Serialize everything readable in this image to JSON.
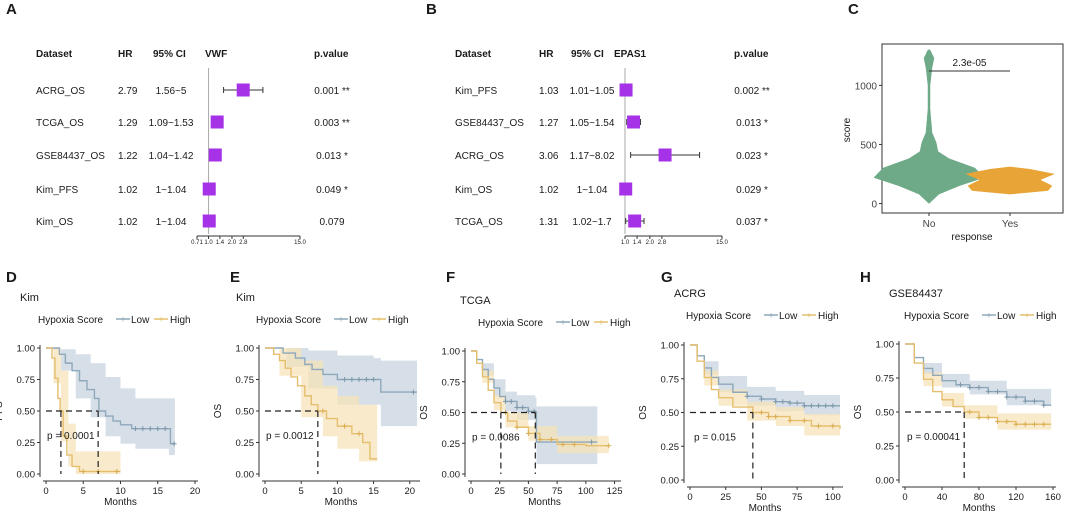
{
  "colors": {
    "marker": "#a532e6",
    "low": "#8fa8ba",
    "high": "#e5bf6e",
    "low_band": "#c8d4e0",
    "high_band": "#f5e3b8",
    "violin_no": "#6eaa88",
    "violin_yes": "#e8a437",
    "text": "#1a1a1a"
  },
  "chart_data": [
    {
      "panel": "A",
      "type": "forest",
      "gene": "VWF",
      "headers": {
        "dataset": "Dataset",
        "hr": "HR",
        "ci": "95% CI",
        "p": "p.value"
      },
      "rows": [
        {
          "dataset": "ACRG_OS",
          "hr_text": "2.79",
          "ci_text": "1.56~5",
          "p_text": "0.001 **",
          "hr": 2.79,
          "lo": 1.56,
          "hi": 5.0
        },
        {
          "dataset": "TCGA_OS",
          "hr_text": "1.29",
          "ci_text": "1.09~1.53",
          "p_text": "0.003 **",
          "hr": 1.29,
          "lo": 1.09,
          "hi": 1.53
        },
        {
          "dataset": "GSE84437_OS",
          "hr_text": "1.22",
          "ci_text": "1.04~1.42",
          "p_text": "0.013 *",
          "hr": 1.22,
          "lo": 1.04,
          "hi": 1.42
        },
        {
          "dataset": "Kim_PFS",
          "hr_text": "1.02",
          "ci_text": "1~1.04",
          "p_text": "0.049 *",
          "hr": 1.02,
          "lo": 1.0,
          "hi": 1.04
        },
        {
          "dataset": "Kim_OS",
          "hr_text": "1.02",
          "ci_text": "1~1.04",
          "p_text": "0.079",
          "hr": 1.02,
          "lo": 1.0,
          "hi": 1.04
        }
      ],
      "axis_ticks": [
        "0.71",
        "1.0",
        "1.4",
        "2.0",
        "2.8",
        "15.0"
      ],
      "tick_values": [
        0.71,
        1.0,
        1.4,
        2.0,
        2.8,
        15.0
      ],
      "ref_value": 1.0
    },
    {
      "panel": "B",
      "type": "forest",
      "gene": "EPAS1",
      "headers": {
        "dataset": "Dataset",
        "hr": "HR",
        "ci": "95% CI",
        "p": "p.value"
      },
      "rows": [
        {
          "dataset": "Kim_PFS",
          "hr_text": "1.03",
          "ci_text": "1.01~1.05",
          "p_text": "0.002 **",
          "hr": 1.03,
          "lo": 1.01,
          "hi": 1.05
        },
        {
          "dataset": "GSE84437_OS",
          "hr_text": "1.27",
          "ci_text": "1.05~1.54",
          "p_text": "0.013 *",
          "hr": 1.27,
          "lo": 1.05,
          "hi": 1.54
        },
        {
          "dataset": "ACRG_OS",
          "hr_text": "3.06",
          "ci_text": "1.17~8.02",
          "p_text": "0.023 *",
          "hr": 3.06,
          "lo": 1.17,
          "hi": 8.02
        },
        {
          "dataset": "Kim_OS",
          "hr_text": "1.02",
          "ci_text": "1~1.04",
          "p_text": "0.029 *",
          "hr": 1.02,
          "lo": 1.0,
          "hi": 1.04
        },
        {
          "dataset": "TCGA_OS",
          "hr_text": "1.31",
          "ci_text": "1.02~1.7",
          "p_text": "0.037 *",
          "hr": 1.31,
          "lo": 1.02,
          "hi": 1.7
        }
      ],
      "axis_ticks": [
        "1.0",
        "1.4",
        "2.0",
        "2.8",
        "15.0"
      ],
      "tick_values": [
        1.0,
        1.4,
        2.0,
        2.8,
        15.0
      ],
      "ref_value": 1.0
    },
    {
      "panel": "C",
      "type": "violin",
      "categories": [
        "No",
        "Yes"
      ],
      "xlabel": "response",
      "ylabel": "score",
      "yticks": [
        0,
        500,
        1000
      ],
      "ylim": [
        -80,
        1350
      ],
      "pvalue": "2.3e-05",
      "no_profile": [
        [
          0,
          0
        ],
        [
          80,
          10
        ],
        [
          150,
          30
        ],
        [
          220,
          55
        ],
        [
          300,
          46
        ],
        [
          380,
          20
        ],
        [
          440,
          9
        ],
        [
          520,
          7
        ],
        [
          600,
          3
        ],
        [
          800,
          1
        ],
        [
          1000,
          1
        ],
        [
          1150,
          3
        ],
        [
          1230,
          5
        ],
        [
          1300,
          1
        ]
      ],
      "yes_profile": [
        [
          80,
          0
        ],
        [
          110,
          38
        ],
        [
          150,
          42
        ],
        [
          200,
          30
        ],
        [
          250,
          44
        ],
        [
          290,
          20
        ],
        [
          310,
          0
        ]
      ]
    },
    {
      "panel": "D",
      "type": "km",
      "title": "Kim",
      "ylabel": "PFS",
      "xlabel": "Months",
      "legend_title": "Hypoxia Score",
      "legend_low": "Low",
      "legend_high": "High",
      "xlim": [
        0,
        20
      ],
      "xticks": [
        0,
        5,
        10,
        15,
        20
      ],
      "yticks": [
        "1.00",
        "0.75",
        "0.50",
        "0.25",
        "0.00"
      ],
      "pvalue": "p = 0.0001",
      "median_low": 7,
      "median_high": 2,
      "low_curve": [
        [
          0,
          1.0
        ],
        [
          1.8,
          0.95
        ],
        [
          2.6,
          0.88
        ],
        [
          3.5,
          0.82
        ],
        [
          4.5,
          0.74
        ],
        [
          5.5,
          0.67
        ],
        [
          6.5,
          0.6
        ],
        [
          7.1,
          0.5
        ],
        [
          8,
          0.46
        ],
        [
          9,
          0.42
        ],
        [
          10,
          0.39
        ],
        [
          11.5,
          0.36
        ],
        [
          16.5,
          0.36
        ],
        [
          16.7,
          0.24
        ],
        [
          17.3,
          0.24
        ]
      ],
      "high_curve": [
        [
          0,
          1.0
        ],
        [
          0.8,
          0.92
        ],
        [
          1.2,
          0.76
        ],
        [
          1.6,
          0.6
        ],
        [
          1.9,
          0.5
        ],
        [
          2.3,
          0.3
        ],
        [
          2.8,
          0.15
        ],
        [
          3.5,
          0.06
        ],
        [
          4.5,
          0.02
        ],
        [
          10,
          0.02
        ]
      ],
      "low_band": [
        [
          0,
          1.0,
          1.0
        ],
        [
          2,
          0.99,
          0.82
        ],
        [
          4,
          0.95,
          0.6
        ],
        [
          6,
          0.88,
          0.45
        ],
        [
          8,
          0.77,
          0.3
        ],
        [
          10,
          0.68,
          0.24
        ],
        [
          12,
          0.6,
          0.2
        ],
        [
          16.5,
          0.6,
          0.15
        ],
        [
          17.3,
          0.56,
          0.08
        ]
      ],
      "high_band": [
        [
          0,
          1.0,
          1.0
        ],
        [
          1,
          1.0,
          0.72
        ],
        [
          2,
          0.82,
          0.26
        ],
        [
          3,
          0.4,
          0.06
        ],
        [
          4,
          0.18,
          0.0
        ],
        [
          10,
          0.1,
          0.0
        ]
      ],
      "censor_low": [
        12,
        13,
        14,
        15,
        16,
        17.2
      ],
      "censor_high": [
        5,
        7,
        9.5
      ]
    },
    {
      "panel": "E",
      "type": "km",
      "title": "Kim",
      "ylabel": "OS",
      "xlabel": "Months",
      "legend_title": "Hypoxia Score",
      "legend_low": "Low",
      "legend_high": "High",
      "xlim": [
        0,
        21
      ],
      "xticks": [
        0,
        5,
        10,
        15,
        20
      ],
      "yticks": [
        "1.00",
        "0.75",
        "0.50",
        "0.25",
        "0.00"
      ],
      "pvalue": "p = 0.0012",
      "median_low": null,
      "median_high": 7.3,
      "low_curve": [
        [
          0,
          1.0
        ],
        [
          2.5,
          0.96
        ],
        [
          4.2,
          0.92
        ],
        [
          5.5,
          0.87
        ],
        [
          6.5,
          0.83
        ],
        [
          8,
          0.79
        ],
        [
          10,
          0.75
        ],
        [
          15,
          0.75
        ],
        [
          16,
          0.65
        ],
        [
          21,
          0.65
        ]
      ],
      "high_curve": [
        [
          0,
          1.0
        ],
        [
          1.2,
          0.95
        ],
        [
          2,
          0.9
        ],
        [
          2.8,
          0.84
        ],
        [
          3.6,
          0.77
        ],
        [
          4.5,
          0.7
        ],
        [
          5.5,
          0.62
        ],
        [
          6.4,
          0.55
        ],
        [
          7.3,
          0.5
        ],
        [
          8.5,
          0.44
        ],
        [
          10,
          0.38
        ],
        [
          12,
          0.32
        ],
        [
          13.5,
          0.25
        ],
        [
          14.5,
          0.12
        ],
        [
          15.5,
          0.12
        ]
      ],
      "low_band": [
        [
          0,
          1.0,
          1.0
        ],
        [
          3,
          1.0,
          0.85
        ],
        [
          6,
          0.98,
          0.68
        ],
        [
          10,
          0.94,
          0.55
        ],
        [
          15,
          0.92,
          0.55
        ],
        [
          16,
          0.9,
          0.38
        ],
        [
          21,
          0.9,
          0.38
        ]
      ],
      "high_band": [
        [
          0,
          1.0,
          1.0
        ],
        [
          2,
          1.0,
          0.78
        ],
        [
          5,
          0.9,
          0.45
        ],
        [
          8,
          0.7,
          0.3
        ],
        [
          10,
          0.62,
          0.2
        ],
        [
          13,
          0.55,
          0.1
        ],
        [
          15.5,
          0.5,
          0.0
        ]
      ],
      "censor_low": [
        11,
        12,
        13,
        14,
        15,
        20.5
      ],
      "censor_high": [
        8,
        11,
        13
      ]
    },
    {
      "panel": "F",
      "type": "km",
      "title": "TCGA",
      "ylabel": "OS",
      "xlabel": "Months",
      "legend_title": "Hypoxia Score",
      "legend_low": "Low",
      "legend_high": "High",
      "xlim": [
        0,
        128
      ],
      "xticks": [
        0,
        25,
        50,
        75,
        100,
        125
      ],
      "yticks": [
        "1.00",
        "0.75",
        "0.50",
        "0.25",
        "0.00"
      ],
      "pvalue": "p = 0.0086",
      "median_low": 56,
      "median_high": 26,
      "low_curve": [
        [
          0,
          1.0
        ],
        [
          5,
          0.93
        ],
        [
          10,
          0.85
        ],
        [
          15,
          0.77
        ],
        [
          20,
          0.7
        ],
        [
          25,
          0.63
        ],
        [
          30,
          0.59
        ],
        [
          40,
          0.54
        ],
        [
          50,
          0.51
        ],
        [
          56,
          0.5
        ],
        [
          57,
          0.26
        ],
        [
          110,
          0.26
        ]
      ],
      "high_curve": [
        [
          0,
          1.0
        ],
        [
          5,
          0.9
        ],
        [
          10,
          0.79
        ],
        [
          15,
          0.68
        ],
        [
          20,
          0.58
        ],
        [
          26,
          0.5
        ],
        [
          32,
          0.43
        ],
        [
          40,
          0.38
        ],
        [
          50,
          0.33
        ],
        [
          60,
          0.28
        ],
        [
          75,
          0.24
        ],
        [
          100,
          0.23
        ],
        [
          120,
          0.23
        ]
      ],
      "low_band": [
        [
          0,
          1.0,
          1.0
        ],
        [
          10,
          0.9,
          0.8
        ],
        [
          20,
          0.77,
          0.63
        ],
        [
          30,
          0.67,
          0.51
        ],
        [
          40,
          0.64,
          0.44
        ],
        [
          56,
          0.62,
          0.38
        ],
        [
          57,
          0.55,
          0.08
        ],
        [
          110,
          0.55,
          0.08
        ]
      ],
      "high_band": [
        [
          0,
          1.0,
          1.0
        ],
        [
          10,
          0.84,
          0.74
        ],
        [
          20,
          0.64,
          0.52
        ],
        [
          30,
          0.5,
          0.38
        ],
        [
          50,
          0.39,
          0.27
        ],
        [
          75,
          0.31,
          0.17
        ],
        [
          120,
          0.31,
          0.15
        ]
      ],
      "censor_low": [
        30,
        35,
        40,
        45,
        50,
        55,
        105
      ],
      "censor_high": [
        30,
        40,
        50,
        60,
        70,
        80,
        90,
        120
      ]
    },
    {
      "panel": "G",
      "type": "km",
      "title": "ACRG",
      "ylabel": "OS",
      "xlabel": "Months",
      "legend_title": "Hypoxia Score",
      "legend_low": "Low",
      "legend_high": "High",
      "xlim": [
        0,
        105
      ],
      "xticks": [
        0,
        25,
        50,
        75,
        100
      ],
      "yticks": [
        "1.00",
        "0.75",
        "0.50",
        "0.25",
        "0.00"
      ],
      "pvalue": "p = 0.015",
      "median_low": null,
      "median_high": 44,
      "low_curve": [
        [
          0,
          1.0
        ],
        [
          5,
          0.92
        ],
        [
          10,
          0.83
        ],
        [
          15,
          0.76
        ],
        [
          20,
          0.71
        ],
        [
          30,
          0.65
        ],
        [
          40,
          0.62
        ],
        [
          50,
          0.6
        ],
        [
          60,
          0.58
        ],
        [
          70,
          0.57
        ],
        [
          80,
          0.55
        ],
        [
          105,
          0.55
        ]
      ],
      "high_curve": [
        [
          0,
          1.0
        ],
        [
          5,
          0.88
        ],
        [
          10,
          0.76
        ],
        [
          15,
          0.67
        ],
        [
          20,
          0.61
        ],
        [
          30,
          0.54
        ],
        [
          44,
          0.5
        ],
        [
          55,
          0.47
        ],
        [
          70,
          0.44
        ],
        [
          85,
          0.4
        ],
        [
          105,
          0.38
        ]
      ],
      "low_band": [
        [
          0,
          1.0,
          1.0
        ],
        [
          10,
          0.88,
          0.78
        ],
        [
          20,
          0.77,
          0.65
        ],
        [
          40,
          0.69,
          0.55
        ],
        [
          60,
          0.66,
          0.51
        ],
        [
          80,
          0.63,
          0.48
        ],
        [
          105,
          0.63,
          0.47
        ]
      ],
      "high_band": [
        [
          0,
          1.0,
          1.0
        ],
        [
          10,
          0.81,
          0.7
        ],
        [
          20,
          0.67,
          0.55
        ],
        [
          40,
          0.58,
          0.44
        ],
        [
          60,
          0.54,
          0.4
        ],
        [
          80,
          0.49,
          0.33
        ],
        [
          105,
          0.47,
          0.3
        ]
      ],
      "censor_low": [
        40,
        50,
        60,
        65,
        70,
        75,
        80,
        85,
        90,
        95,
        100
      ],
      "censor_high": [
        50,
        55,
        60,
        70,
        80,
        90,
        100
      ]
    },
    {
      "panel": "H",
      "type": "km",
      "title": "GSE84437",
      "ylabel": "OS",
      "xlabel": "Months",
      "legend_title": "Hypoxia Score",
      "legend_low": "Low",
      "legend_high": "High",
      "xlim": [
        0,
        160
      ],
      "xticks": [
        0,
        40,
        80,
        120,
        160
      ],
      "yticks": [
        "1.00",
        "0.75",
        "0.50",
        "0.25",
        "0.00"
      ],
      "pvalue": "p = 0.00041",
      "median_low": null,
      "median_high": 64,
      "low_curve": [
        [
          0,
          1.0
        ],
        [
          10,
          0.9
        ],
        [
          20,
          0.82
        ],
        [
          30,
          0.77
        ],
        [
          40,
          0.73
        ],
        [
          55,
          0.7
        ],
        [
          70,
          0.68
        ],
        [
          90,
          0.65
        ],
        [
          110,
          0.61
        ],
        [
          130,
          0.58
        ],
        [
          150,
          0.55
        ],
        [
          158,
          0.55
        ]
      ],
      "high_curve": [
        [
          0,
          1.0
        ],
        [
          10,
          0.86
        ],
        [
          20,
          0.74
        ],
        [
          30,
          0.65
        ],
        [
          40,
          0.59
        ],
        [
          52,
          0.54
        ],
        [
          64,
          0.5
        ],
        [
          80,
          0.46
        ],
        [
          100,
          0.43
        ],
        [
          120,
          0.41
        ],
        [
          158,
          0.41
        ]
      ],
      "low_band": [
        [
          0,
          1.0,
          1.0
        ],
        [
          20,
          0.86,
          0.78
        ],
        [
          40,
          0.78,
          0.68
        ],
        [
          70,
          0.73,
          0.63
        ],
        [
          110,
          0.67,
          0.55
        ],
        [
          158,
          0.63,
          0.47
        ]
      ],
      "high_band": [
        [
          0,
          1.0,
          1.0
        ],
        [
          20,
          0.79,
          0.69
        ],
        [
          40,
          0.64,
          0.54
        ],
        [
          64,
          0.55,
          0.45
        ],
        [
          100,
          0.49,
          0.37
        ],
        [
          158,
          0.47,
          0.35
        ]
      ],
      "censor_low": [
        60,
        70,
        80,
        90,
        100,
        110,
        120,
        130,
        140,
        150
      ],
      "censor_high": [
        70,
        80,
        90,
        100,
        110,
        120,
        130,
        140,
        150
      ]
    }
  ]
}
